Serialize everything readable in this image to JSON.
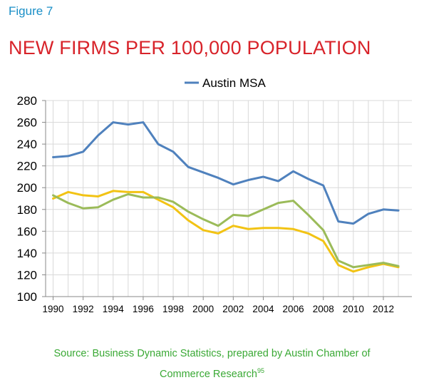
{
  "figure_label": "Figure 7",
  "title": "NEW FIRMS PER 100,000 POPULATION",
  "source": {
    "line1": "Source: Business Dynamic Statistics, prepared by Austin Chamber of",
    "line2": "Commerce Research",
    "footnote": "95"
  },
  "colors": {
    "figure_label": "#1a8fc7",
    "title": "#d8232a",
    "source": "#3aa935"
  },
  "chart_data": {
    "type": "line",
    "title": "",
    "xlabel": "",
    "ylabel": "",
    "ylim": [
      100,
      280
    ],
    "xlim": [
      1989.5,
      2013.9
    ],
    "yticks": [
      100,
      120,
      140,
      160,
      180,
      200,
      220,
      240,
      260,
      280
    ],
    "xticks": [
      1990,
      1992,
      1994,
      1996,
      1998,
      2000,
      2002,
      2004,
      2006,
      2008,
      2010,
      2012
    ],
    "grid": true,
    "legend_position": "top-center",
    "x": [
      1990,
      1991,
      1992,
      1993,
      1994,
      1995,
      1996,
      1997,
      1998,
      1999,
      2000,
      2001,
      2002,
      2003,
      2004,
      2005,
      2006,
      2007,
      2008,
      2009,
      2010,
      2011,
      2012,
      2013
    ],
    "series": [
      {
        "name": "Austin MSA",
        "color": "#4f81bd",
        "in_legend": true,
        "values": [
          228,
          229,
          233,
          248,
          260,
          258,
          260,
          240,
          233,
          219,
          214,
          209,
          203,
          207,
          210,
          206,
          215,
          208,
          202,
          169,
          167,
          176,
          180,
          179
        ]
      },
      {
        "name": "",
        "color": "#9bbb59",
        "in_legend": false,
        "values": [
          193,
          186,
          181,
          182,
          189,
          194,
          191,
          191,
          187,
          178,
          171,
          165,
          175,
          174,
          180,
          186,
          188,
          175,
          161,
          133,
          127,
          129,
          131,
          128
        ]
      },
      {
        "name": "",
        "color": "#f2c314",
        "in_legend": false,
        "values": [
          190,
          196,
          193,
          192,
          197,
          196,
          196,
          189,
          182,
          170,
          161,
          158,
          165,
          162,
          163,
          163,
          162,
          158,
          151,
          129,
          123,
          127,
          130,
          127
        ]
      }
    ]
  }
}
